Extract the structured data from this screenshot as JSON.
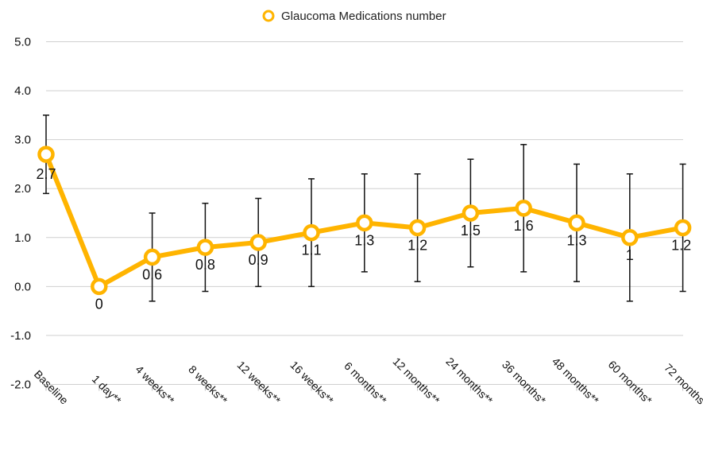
{
  "chart_data": {
    "type": "line",
    "title": "",
    "xlabel": "",
    "ylabel": "",
    "categories": [
      "Baseline",
      "1 day**",
      "4 weeks**",
      "8 weeks**",
      "12 weeks**",
      "16 weeks**",
      "6 months**",
      "12 months**",
      "24 months**",
      "36 months*",
      "48 months**",
      "60 months*",
      "72  months"
    ],
    "series": [
      {
        "name": "Glaucoma Medications number",
        "color": "#FFB400",
        "values": [
          2.7,
          0,
          0.6,
          0.8,
          0.9,
          1.1,
          1.3,
          1.2,
          1.5,
          1.6,
          1.3,
          1,
          1.2
        ],
        "labels": [
          "2.7",
          "0",
          "0.6",
          "0.8",
          "0.9",
          "1.1",
          "1.3",
          "1.2",
          "1.5",
          "1.6",
          "1.3",
          "1",
          "1.2"
        ],
        "error_bars": [
          [
            1.9,
            3.5
          ],
          [
            0,
            0
          ],
          [
            -0.3,
            1.5
          ],
          [
            -0.1,
            1.7
          ],
          [
            0,
            1.8
          ],
          [
            0,
            2.2
          ],
          [
            0.3,
            2.3
          ],
          [
            0.1,
            2.3
          ],
          [
            0.4,
            2.6
          ],
          [
            0.3,
            2.9
          ],
          [
            0.1,
            2.5
          ],
          [
            -0.3,
            2.3
          ],
          [
            -0.1,
            2.5
          ]
        ]
      }
    ],
    "ylim": [
      -2,
      5
    ],
    "yticks": [
      "5.0",
      "4.0",
      "3.0",
      "2.0",
      "1.0",
      "0.0",
      "-1.0",
      "-2.0"
    ],
    "ytick_values": [
      5,
      4,
      3,
      2,
      1,
      0,
      -1,
      -2
    ],
    "grid": true,
    "legend_position": "top-center"
  }
}
